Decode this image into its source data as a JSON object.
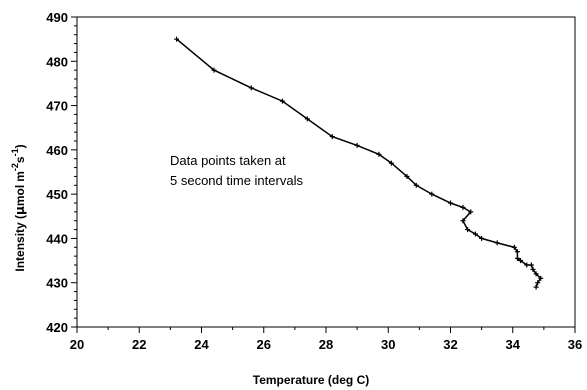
{
  "chart_data": {
    "type": "line",
    "title": "",
    "xlabel": "Temperature (deg C)",
    "ylabel": {
      "base": "Intensity (",
      "mu": "µ",
      "mol": "mol",
      "m": "m",
      "exp_m": "-2",
      "s": "s",
      "exp_s": "-1",
      "close": ")"
    },
    "xlim": [
      20,
      36
    ],
    "ylim": [
      420,
      490
    ],
    "xticks": [
      "20",
      "22",
      "24",
      "26",
      "28",
      "30",
      "32",
      "34",
      "36"
    ],
    "yticks": [
      "420",
      "430",
      "440",
      "450",
      "460",
      "470",
      "480",
      "490"
    ],
    "grid": false,
    "legend": "none",
    "annotation": [
      "Data points taken at",
      "5 second time intervals"
    ],
    "line_color": "#000000",
    "series": [
      {
        "x": [
          23.2,
          24.4,
          25.6,
          26.6,
          27.4,
          28.2,
          29.0,
          29.7,
          30.1,
          30.6,
          30.9,
          31.4,
          32.0,
          32.4,
          32.65,
          32.4,
          32.55,
          32.8,
          33.0,
          33.5,
          34.05,
          34.15,
          34.15,
          34.25,
          34.45,
          34.6,
          34.65,
          34.75,
          34.9,
          34.8,
          34.75
        ],
        "y": [
          485,
          478,
          474,
          471,
          467,
          463,
          461,
          459,
          457,
          454,
          452,
          450,
          448,
          447,
          446,
          444,
          442,
          441,
          440,
          439,
          438,
          437,
          435.5,
          435,
          434,
          434,
          433,
          432,
          431,
          430,
          429
        ]
      }
    ]
  }
}
